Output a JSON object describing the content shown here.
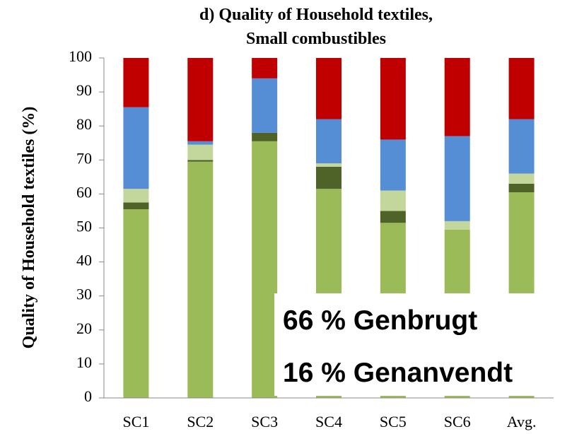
{
  "chart_data": {
    "type": "stacked_bar",
    "title": [
      "d) Quality of Household textiles,",
      "Small combustibles"
    ],
    "y_label": "Quality of Household textiles (%)",
    "categories": [
      "SC1",
      "SC2",
      "SC3",
      "SC4",
      "SC5",
      "SC6",
      "Avg."
    ],
    "series": [
      {
        "color": "#9bbb59",
        "values": [
          55.5,
          69.5,
          75.5,
          61.5,
          51.5,
          49.5,
          60.5
        ]
      },
      {
        "color": "#4f6228",
        "values": [
          2,
          0.5,
          2.5,
          6.5,
          3.5,
          0,
          2.5
        ]
      },
      {
        "color": "#c3d69b",
        "values": [
          4,
          4.5,
          0,
          1,
          6,
          2.5,
          3
        ]
      },
      {
        "color": "#558ed5",
        "values": [
          24,
          1,
          16,
          13,
          15,
          25,
          16
        ]
      },
      {
        "color": "#c00000",
        "values": [
          14.5,
          24.5,
          6,
          18,
          24,
          23,
          18
        ]
      }
    ],
    "ylim": [
      0,
      100
    ],
    "yticks": [
      0,
      10,
      20,
      30,
      40,
      50,
      60,
      70,
      80,
      90,
      100
    ],
    "annotations": [
      "66 % Genbrugt",
      "16 % Genanvendt"
    ]
  }
}
